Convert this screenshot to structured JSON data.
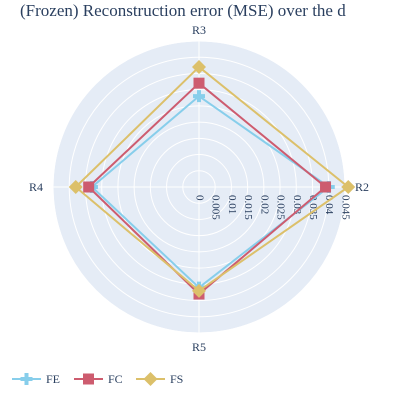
{
  "chart_data": {
    "type": "radar",
    "title": "(Frozen) Reconstruction error (MSE) over the d",
    "categories": [
      "R2",
      "R3",
      "R4",
      "R5"
    ],
    "radial_range": [
      0,
      0.045
    ],
    "radial_ticks": [
      "0",
      "0.005",
      "0.01",
      "0.015",
      "0.02",
      "0.025",
      "0.03",
      "0.035",
      "0.04",
      "0.045"
    ],
    "grid": true,
    "legend_position": "bottom-left",
    "series": [
      {
        "name": "FE",
        "color": "#87ceeb",
        "marker": "cross",
        "values": [
          0.04,
          0.028,
          0.033,
          0.031
        ]
      },
      {
        "name": "FC",
        "color": "#cd5c6f",
        "marker": "square",
        "values": [
          0.039,
          0.032,
          0.034,
          0.033
        ]
      },
      {
        "name": "FS",
        "color": "#dcc06a",
        "marker": "diamond",
        "values": [
          0.046,
          0.037,
          0.038,
          0.032
        ]
      }
    ]
  }
}
